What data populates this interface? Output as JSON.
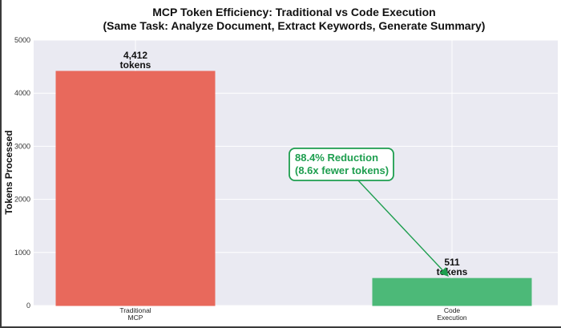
{
  "chart_data": {
    "type": "bar",
    "title": "MCP Token Efficiency: Traditional vs Code Execution",
    "subtitle": "(Same Task: Analyze Document, Extract Keywords, Generate Summary)",
    "xlabel": "",
    "ylabel": "Tokens Processed",
    "ylim": [
      0,
      5000
    ],
    "yticks": [
      0,
      1000,
      2000,
      3000,
      4000,
      5000
    ],
    "grid": true,
    "categories": [
      {
        "line1": "Traditional",
        "line2": "MCP"
      },
      {
        "line1": "Code",
        "line2": "Execution"
      }
    ],
    "values": [
      4412,
      511
    ],
    "colors": [
      "#e8695c",
      "#4cb978"
    ],
    "data_labels": [
      {
        "value": "4,412",
        "unit": "tokens"
      },
      {
        "value": "511",
        "unit": "tokens"
      }
    ],
    "annotation": {
      "line1": "88.4% Reduction",
      "line2": "(8.6x fewer tokens)",
      "color": "#1e9e4f",
      "points_to": "Code Execution"
    }
  }
}
